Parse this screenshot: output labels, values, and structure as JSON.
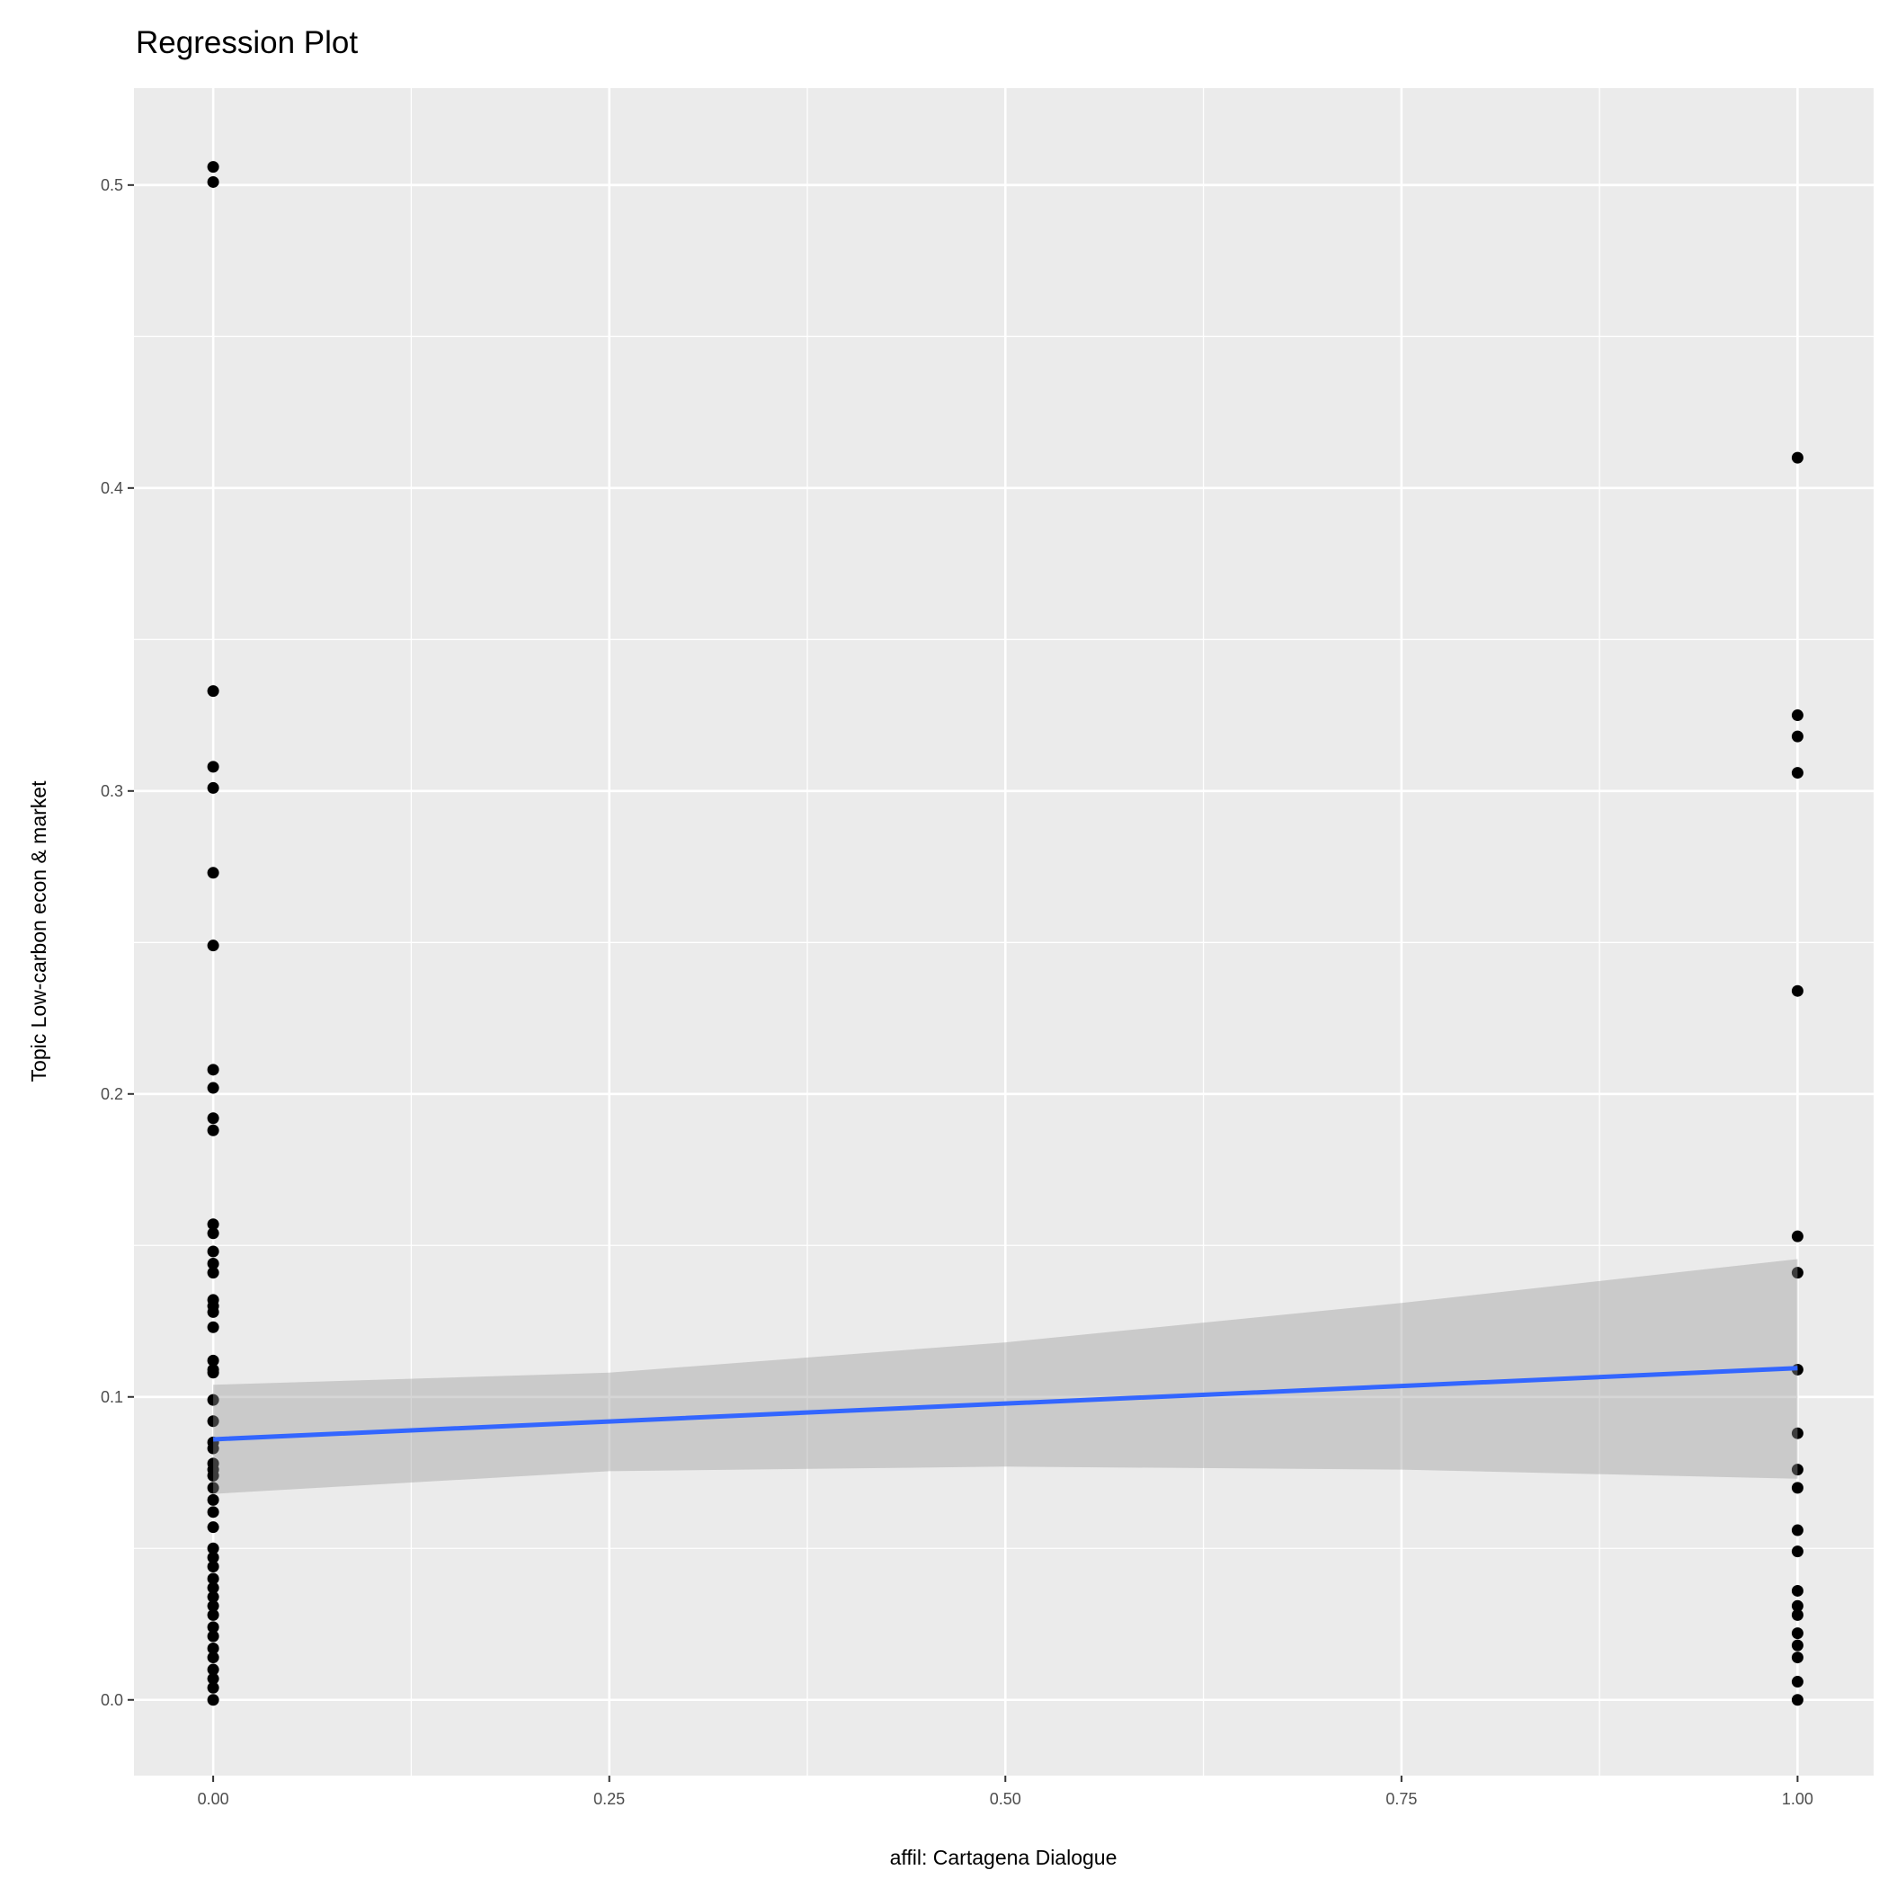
{
  "chart_data": {
    "type": "scatter",
    "title": "Regression Plot",
    "xlabel": "affil: Cartagena Dialogue",
    "ylabel": "Topic Low-carbon econ & market",
    "xlim": [
      -0.05,
      1.048
    ],
    "ylim": [
      -0.025,
      0.532
    ],
    "grid": true,
    "x_ticks": [
      0,
      0.25,
      0.5,
      0.75,
      1
    ],
    "x_tick_labels": [
      "0.00",
      "0.25",
      "0.50",
      "0.75",
      "1.00"
    ],
    "y_ticks": [
      0,
      0.1,
      0.2,
      0.3,
      0.4,
      0.5
    ],
    "y_tick_labels": [
      "0.0",
      "0.1",
      "0.2",
      "0.3",
      "0.4",
      "0.5"
    ],
    "series": [
      {
        "name": "affil = 0",
        "x": 0,
        "values": [
          0.506,
          0.501,
          0.333,
          0.308,
          0.301,
          0.273,
          0.249,
          0.208,
          0.202,
          0.192,
          0.188,
          0.157,
          0.154,
          0.148,
          0.144,
          0.141,
          0.132,
          0.13,
          0.128,
          0.123,
          0.112,
          0.109,
          0.108,
          0.099,
          0.092,
          0.085,
          0.083,
          0.078,
          0.076,
          0.074,
          0.07,
          0.066,
          0.062,
          0.057,
          0.05,
          0.047,
          0.044,
          0.04,
          0.037,
          0.034,
          0.031,
          0.028,
          0.024,
          0.021,
          0.017,
          0.014,
          0.01,
          0.007,
          0.004,
          0.0
        ]
      },
      {
        "name": "affil = 1",
        "x": 1,
        "values": [
          0.41,
          0.325,
          0.318,
          0.306,
          0.234,
          0.153,
          0.141,
          0.109,
          0.088,
          0.076,
          0.07,
          0.056,
          0.049,
          0.036,
          0.031,
          0.028,
          0.022,
          0.018,
          0.014,
          0.006,
          0.0
        ]
      }
    ],
    "regression": {
      "x": [
        0,
        0.25,
        0.5,
        0.75,
        1
      ],
      "fit": [
        0.086,
        0.0919,
        0.0978,
        0.1036,
        0.1095
      ],
      "ci_upper": [
        0.104,
        0.108,
        0.118,
        0.131,
        0.1455
      ],
      "ci_lower": [
        0.068,
        0.0755,
        0.077,
        0.076,
        0.073
      ]
    },
    "colors": {
      "points": "#000000",
      "line": "#3366FF",
      "ribbon": "#999999",
      "panel": "#EBEBEB",
      "grid": "#FFFFFF"
    }
  }
}
